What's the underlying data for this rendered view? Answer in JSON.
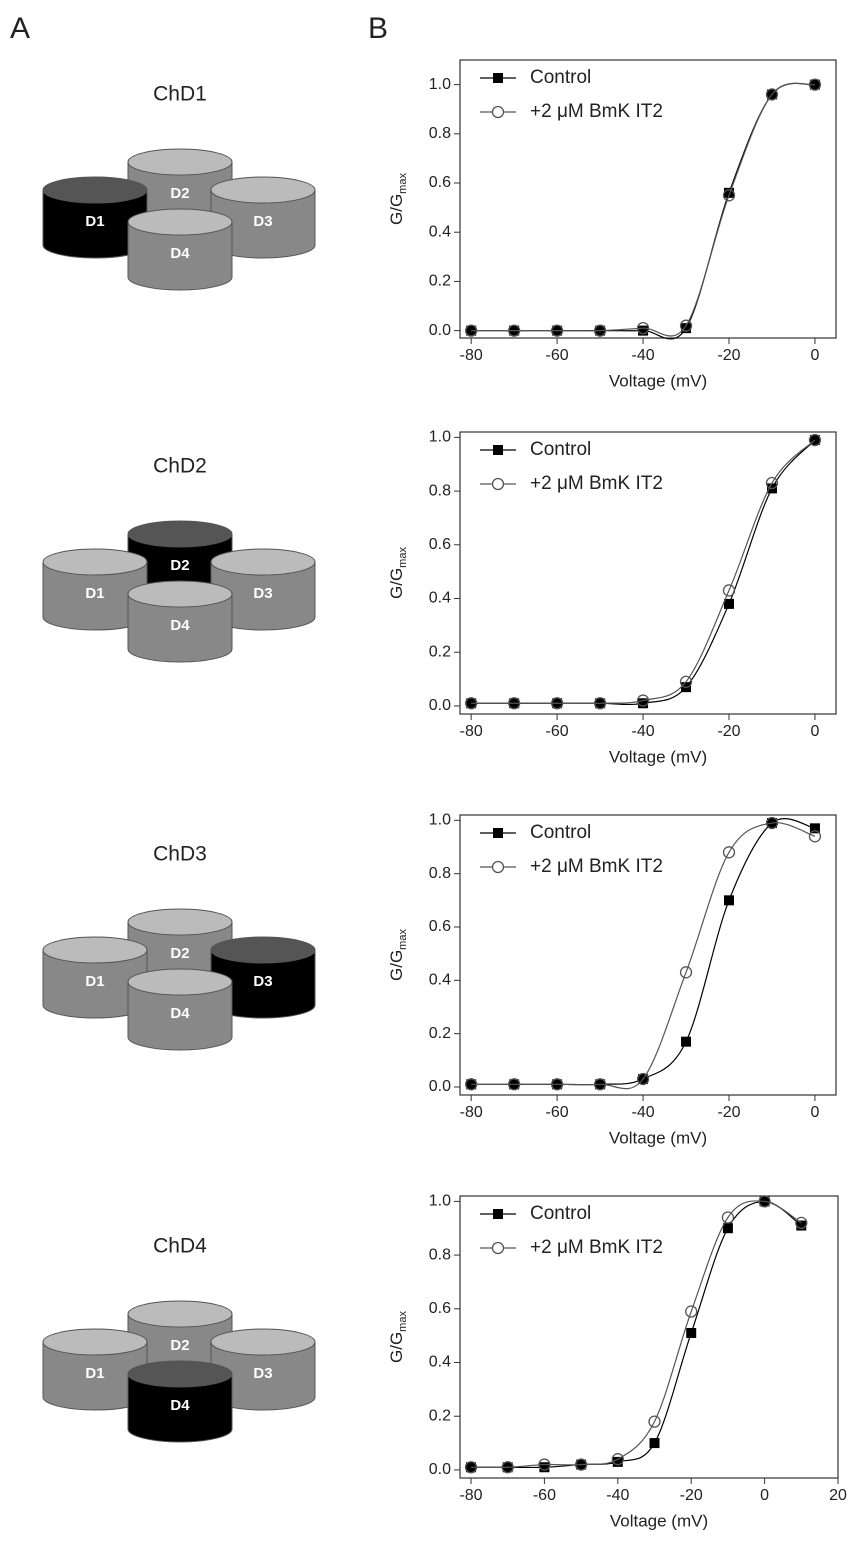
{
  "panel_labels": [
    "A",
    "B"
  ],
  "diagrams": [
    {
      "title": "ChD1",
      "domains": [
        "D1",
        "D2",
        "D3",
        "D4"
      ],
      "highlight": "D1"
    },
    {
      "title": "ChD2",
      "domains": [
        "D1",
        "D2",
        "D3",
        "D4"
      ],
      "highlight": "D2"
    },
    {
      "title": "ChD3",
      "domains": [
        "D1",
        "D2",
        "D3",
        "D4"
      ],
      "highlight": "D3"
    },
    {
      "title": "ChD4",
      "domains": [
        "D1",
        "D2",
        "D3",
        "D4"
      ],
      "highlight": "D4"
    }
  ],
  "chart_data": [
    {
      "type": "line",
      "xlabel": "Voltage (mV)",
      "ylabel": "G/G",
      "ylabel_sub": "max",
      "x": [
        -80,
        -70,
        -60,
        -50,
        -40,
        -30,
        -20,
        -10,
        0
      ],
      "series": [
        {
          "name": "Control",
          "color": "#000000",
          "marker": "square",
          "values": [
            0,
            0,
            0,
            0,
            0,
            0.01,
            0.56,
            0.96,
            1.0
          ]
        },
        {
          "name": "+2 μM BmK IT2",
          "color": "#555555",
          "marker": "circle",
          "values": [
            0,
            0,
            0,
            0,
            0.01,
            0.02,
            0.55,
            0.96,
            1.0
          ]
        }
      ],
      "xlim": [
        -82.6,
        4.9
      ],
      "xticks": [
        -80,
        -60,
        -40,
        -20,
        0
      ],
      "ylim": [
        -0.03,
        1.1
      ],
      "yticks": [
        {
          "value": 0,
          "label": "0.0"
        },
        0.2,
        0.4,
        0.6,
        0.8,
        {
          "value": 1,
          "label": "1.0"
        }
      ]
    },
    {
      "type": "line",
      "xlabel": "Voltage (mV)",
      "ylabel": "G/G",
      "ylabel_sub": "max",
      "x": [
        -80,
        -70,
        -60,
        -50,
        -40,
        -30,
        -20,
        -10,
        0
      ],
      "series": [
        {
          "name": "Control",
          "color": "#000000",
          "marker": "square",
          "values": [
            0.01,
            0.01,
            0.01,
            0.01,
            0.01,
            0.07,
            0.38,
            0.81,
            0.99
          ]
        },
        {
          "name": "+2 μM BmK IT2",
          "color": "#555555",
          "marker": "circle",
          "values": [
            0.01,
            0.01,
            0.01,
            0.01,
            0.02,
            0.09,
            0.43,
            0.83,
            0.99
          ]
        }
      ],
      "xlim": [
        -82.6,
        4.9
      ],
      "xticks": [
        -80,
        -60,
        -40,
        -20,
        0
      ],
      "ylim": [
        -0.03,
        1.02
      ],
      "yticks": [
        {
          "value": 0,
          "label": "0.0"
        },
        0.2,
        0.4,
        0.6,
        0.8,
        {
          "value": 1,
          "label": "1.0"
        }
      ]
    },
    {
      "type": "line",
      "xlabel": "Voltage (mV)",
      "ylabel": "G/G",
      "ylabel_sub": "max",
      "x": [
        -80,
        -70,
        -60,
        -50,
        -40,
        -30,
        -20,
        -10,
        0
      ],
      "series": [
        {
          "name": "Control",
          "color": "#000000",
          "marker": "square",
          "values": [
            0.01,
            0.01,
            0.01,
            0.01,
            0.03,
            0.17,
            0.7,
            0.99,
            0.97
          ]
        },
        {
          "name": "+2 μM BmK IT2",
          "color": "#555555",
          "marker": "circle",
          "values": [
            0.01,
            0.01,
            0.01,
            0.01,
            0.03,
            0.43,
            0.88,
            0.99,
            0.94
          ]
        }
      ],
      "xlim": [
        -82.6,
        4.9
      ],
      "xticks": [
        -80,
        -60,
        -40,
        -20,
        0
      ],
      "ylim": [
        -0.03,
        1.02
      ],
      "yticks": [
        {
          "value": 0,
          "label": "0.0"
        },
        0.2,
        0.4,
        0.6,
        0.8,
        {
          "value": 1,
          "label": "1.0"
        }
      ]
    },
    {
      "type": "line",
      "xlabel": "Voltage (mV)",
      "ylabel": "G/G",
      "ylabel_sub": "max",
      "x": [
        -80,
        -70,
        -60,
        -50,
        -40,
        -30,
        -20,
        -10,
        0,
        10
      ],
      "series": [
        {
          "name": "Control",
          "color": "#000000",
          "marker": "square",
          "values": [
            0.01,
            0.01,
            0.01,
            0.02,
            0.03,
            0.1,
            0.51,
            0.9,
            1.0,
            0.91
          ]
        },
        {
          "name": "+2 μM BmK IT2",
          "color": "#555555",
          "marker": "circle",
          "values": [
            0.01,
            0.01,
            0.02,
            0.02,
            0.04,
            0.18,
            0.59,
            0.94,
            1.0,
            0.92
          ]
        }
      ],
      "xlim": [
        -83,
        20
      ],
      "xticks": [
        -80,
        -60,
        -40,
        -20,
        0,
        20
      ],
      "ylim": [
        -0.03,
        1.02
      ],
      "yticks": [
        {
          "value": 0,
          "label": "0.0"
        },
        0.2,
        0.4,
        0.6,
        0.8,
        {
          "value": 1,
          "label": "1.0"
        }
      ]
    }
  ]
}
